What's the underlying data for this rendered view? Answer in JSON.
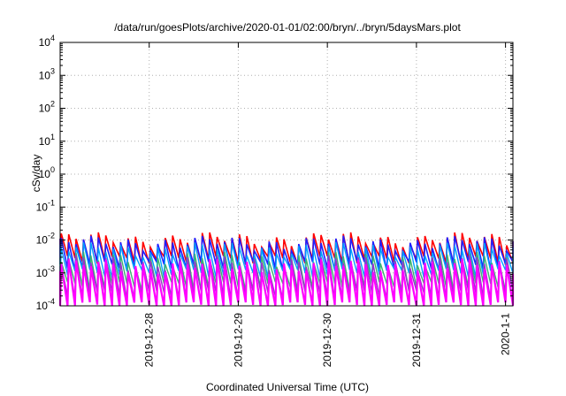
{
  "chart_data": {
    "type": "line",
    "title": "/data/run/goesPlots/archive/2020-01-01/02:00/bryn/../bryn/5daysMars.plot",
    "xlabel": "Coordinated Universal Time (UTC)",
    "ylabel": "cSv/day",
    "y_scale": "log",
    "ylim": [
      0.0001,
      10000
    ],
    "xlim": [
      "2019-12-27 00:00",
      "2020-01-01 02:00"
    ],
    "y_ticks": [
      {
        "base": "10",
        "exp": "-4"
      },
      {
        "base": "10",
        "exp": "-3"
      },
      {
        "base": "10",
        "exp": "-2"
      },
      {
        "base": "10",
        "exp": "-1"
      },
      {
        "base": "10",
        "exp": "0"
      },
      {
        "base": "10",
        "exp": "1"
      },
      {
        "base": "10",
        "exp": "2"
      },
      {
        "base": "10",
        "exp": "3"
      },
      {
        "base": "10",
        "exp": "4"
      }
    ],
    "x_ticks": [
      {
        "label": "2019-12-28",
        "x": "2019-12-28 00:00"
      },
      {
        "label": "2019-12-29",
        "x": "2019-12-29 00:00"
      },
      {
        "label": "2019-12-30",
        "x": "2019-12-30 00:00"
      },
      {
        "label": "2019-12-31",
        "x": "2019-12-31 00:00"
      },
      {
        "label": "2020-1-1",
        "x": "2020-01-01 00:00"
      }
    ],
    "grid": true,
    "period_hours": 2,
    "series": [
      {
        "color": "#ff0000",
        "peak": 0.011,
        "trough": 0.0025,
        "width": 1.6
      },
      {
        "color": "#1f1fff",
        "peak": 0.0085,
        "trough": 0.0017,
        "width": 1.6
      },
      {
        "color": "#00a0ff",
        "peak": 0.0055,
        "trough": 0.001,
        "width": 1.4
      },
      {
        "color": "#3cb371",
        "peak": 0.0028,
        "trough": 0.0004,
        "width": 1.4
      },
      {
        "color": "#9932cc",
        "peak": 0.0022,
        "trough": 0.00022,
        "width": 1.4
      },
      {
        "color": "#ff00ff",
        "peak": 0.0017,
        "trough": 0.0001,
        "width": 2.2
      }
    ]
  }
}
